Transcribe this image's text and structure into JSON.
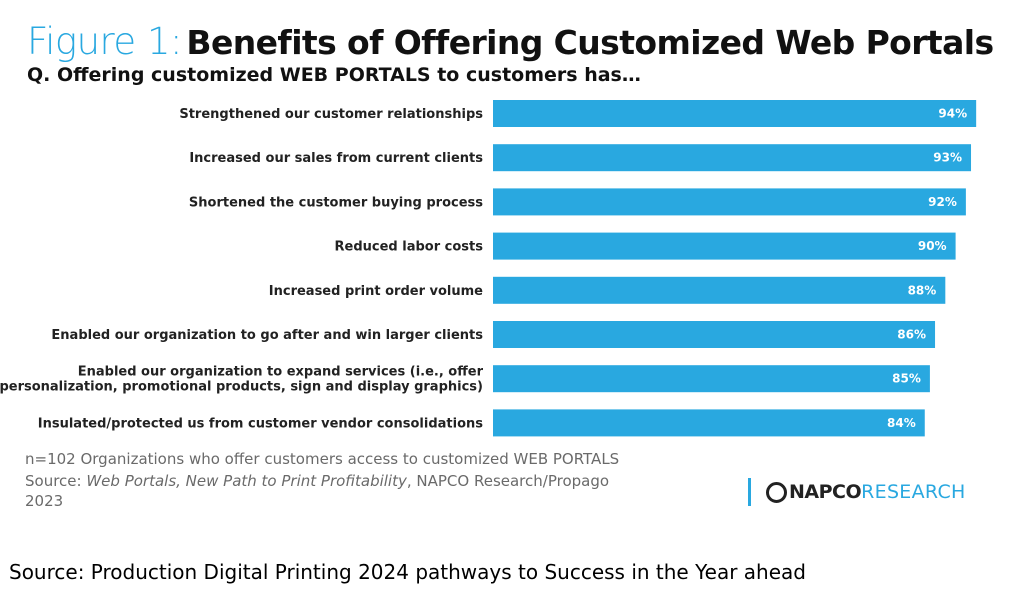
{
  "header": {
    "title_prefix": "Figure 1:",
    "title_main": "Benefits of Offering Customized Web Portals",
    "subtitle": "Q. Offering customized WEB PORTALS to customers has…"
  },
  "chart_data": {
    "type": "bar",
    "orientation": "horizontal",
    "categories": [
      [
        "Strengthened our customer relationships"
      ],
      [
        "Increased our sales from current clients"
      ],
      [
        "Shortened the customer buying process"
      ],
      [
        "Reduced labor costs"
      ],
      [
        "Increased print order volume"
      ],
      [
        "Enabled our organization to go after and win larger clients"
      ],
      [
        "Enabled our organization to expand services (i.e., offer",
        "personalization, promotional products, sign and display graphics)"
      ],
      [
        "Insulated/protected us from customer vendor consolidations"
      ]
    ],
    "values": [
      94,
      93,
      92,
      90,
      88,
      86,
      85,
      84
    ],
    "value_labels": [
      "94%",
      "93%",
      "92%",
      "90%",
      "88%",
      "86%",
      "85%",
      "84%"
    ],
    "bar_color": "#29a8e0",
    "xlim": [
      0,
      100
    ],
    "grid": false
  },
  "notes": {
    "sample": "n=102 Organizations who offer customers access to customized WEB PORTALS",
    "source_prefix": "Source: ",
    "source_title": "Web Portals, New Path to Print Profitability",
    "source_suffix": ", NAPCO Research/Propago",
    "source_year": "2023"
  },
  "logo": {
    "napco": "NAPCO",
    "research": "RESEARCH"
  },
  "caption": "Source: Production Digital Printing 2024 pathways to Success in the Year ahead"
}
